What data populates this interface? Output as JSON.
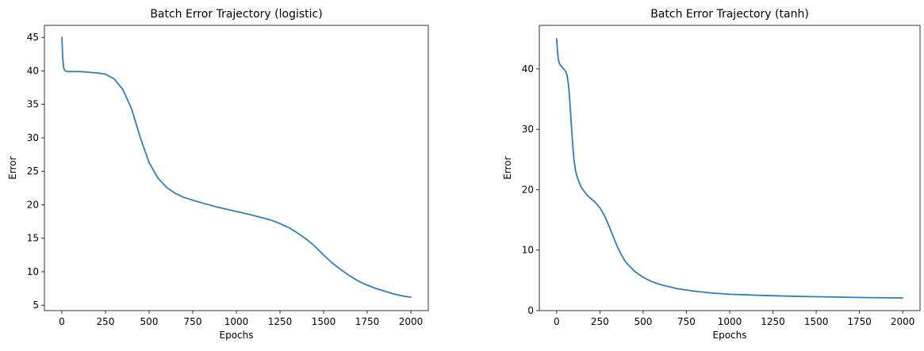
{
  "chart_data": [
    {
      "type": "line",
      "title": "Batch Error Trajectory (logistic)",
      "xlabel": "Epochs",
      "ylabel": "Error",
      "xlim": [
        -100,
        2100
      ],
      "ylim": [
        4.2,
        46.8
      ],
      "xticks": [
        0,
        250,
        500,
        750,
        1000,
        1250,
        1500,
        1750,
        2000
      ],
      "xtick_labels": [
        "0",
        "250",
        "500",
        "750",
        "1000",
        "1250",
        "1500",
        "1750",
        "2000"
      ],
      "yticks": [
        5,
        10,
        15,
        20,
        25,
        30,
        35,
        40,
        45
      ],
      "ytick_labels": [
        "5",
        "10",
        "15",
        "20",
        "25",
        "30",
        "35",
        "40",
        "45"
      ],
      "grid": false,
      "series": [
        {
          "color": "#2e7ebf",
          "x": [
            0,
            5,
            10,
            15,
            20,
            30,
            50,
            100,
            150,
            200,
            250,
            300,
            350,
            400,
            450,
            500,
            550,
            600,
            650,
            700,
            750,
            800,
            900,
            1000,
            1100,
            1200,
            1250,
            1300,
            1350,
            1400,
            1450,
            1500,
            1550,
            1600,
            1650,
            1700,
            1750,
            1800,
            1850,
            1900,
            1950,
            2000
          ],
          "y": [
            45,
            42,
            40.5,
            40.1,
            40,
            39.9,
            39.9,
            39.9,
            39.8,
            39.7,
            39.5,
            38.8,
            37.2,
            34.3,
            30,
            26.3,
            24,
            22.6,
            21.7,
            21.1,
            20.7,
            20.3,
            19.6,
            19,
            18.4,
            17.7,
            17.2,
            16.6,
            15.8,
            14.9,
            13.8,
            12.5,
            11.3,
            10.3,
            9.4,
            8.6,
            8,
            7.5,
            7.1,
            6.7,
            6.4,
            6.2
          ]
        }
      ]
    },
    {
      "type": "line",
      "title": "Batch Error Trajectory (tanh)",
      "xlabel": "Epochs",
      "ylabel": "Error",
      "xlim": [
        -100,
        2100
      ],
      "ylim": [
        0,
        47.2
      ],
      "xticks": [
        0,
        250,
        500,
        750,
        1000,
        1250,
        1500,
        1750,
        2000
      ],
      "xtick_labels": [
        "0",
        "250",
        "500",
        "750",
        "1000",
        "1250",
        "1500",
        "1750",
        "2000"
      ],
      "yticks": [
        0,
        10,
        20,
        30,
        40
      ],
      "ytick_labels": [
        "0",
        "10",
        "20",
        "30",
        "40"
      ],
      "grid": false,
      "series": [
        {
          "color": "#2e7ebf",
          "x": [
            0,
            5,
            10,
            15,
            20,
            30,
            40,
            50,
            60,
            70,
            80,
            90,
            100,
            110,
            120,
            140,
            160,
            180,
            200,
            220,
            250,
            275,
            300,
            325,
            350,
            375,
            400,
            450,
            500,
            550,
            600,
            700,
            800,
            900,
            1000,
            1200,
            1400,
            1600,
            1800,
            2000
          ],
          "y": [
            45,
            43,
            41.5,
            41,
            40.7,
            40.3,
            40,
            39.7,
            39,
            37,
            33,
            28.5,
            25,
            23,
            22,
            20.5,
            19.7,
            19,
            18.5,
            18,
            17,
            15.8,
            14.2,
            12.4,
            10.6,
            9.2,
            8,
            6.5,
            5.5,
            4.8,
            4.3,
            3.6,
            3.2,
            2.9,
            2.7,
            2.5,
            2.35,
            2.25,
            2.15,
            2.1
          ]
        }
      ]
    }
  ]
}
